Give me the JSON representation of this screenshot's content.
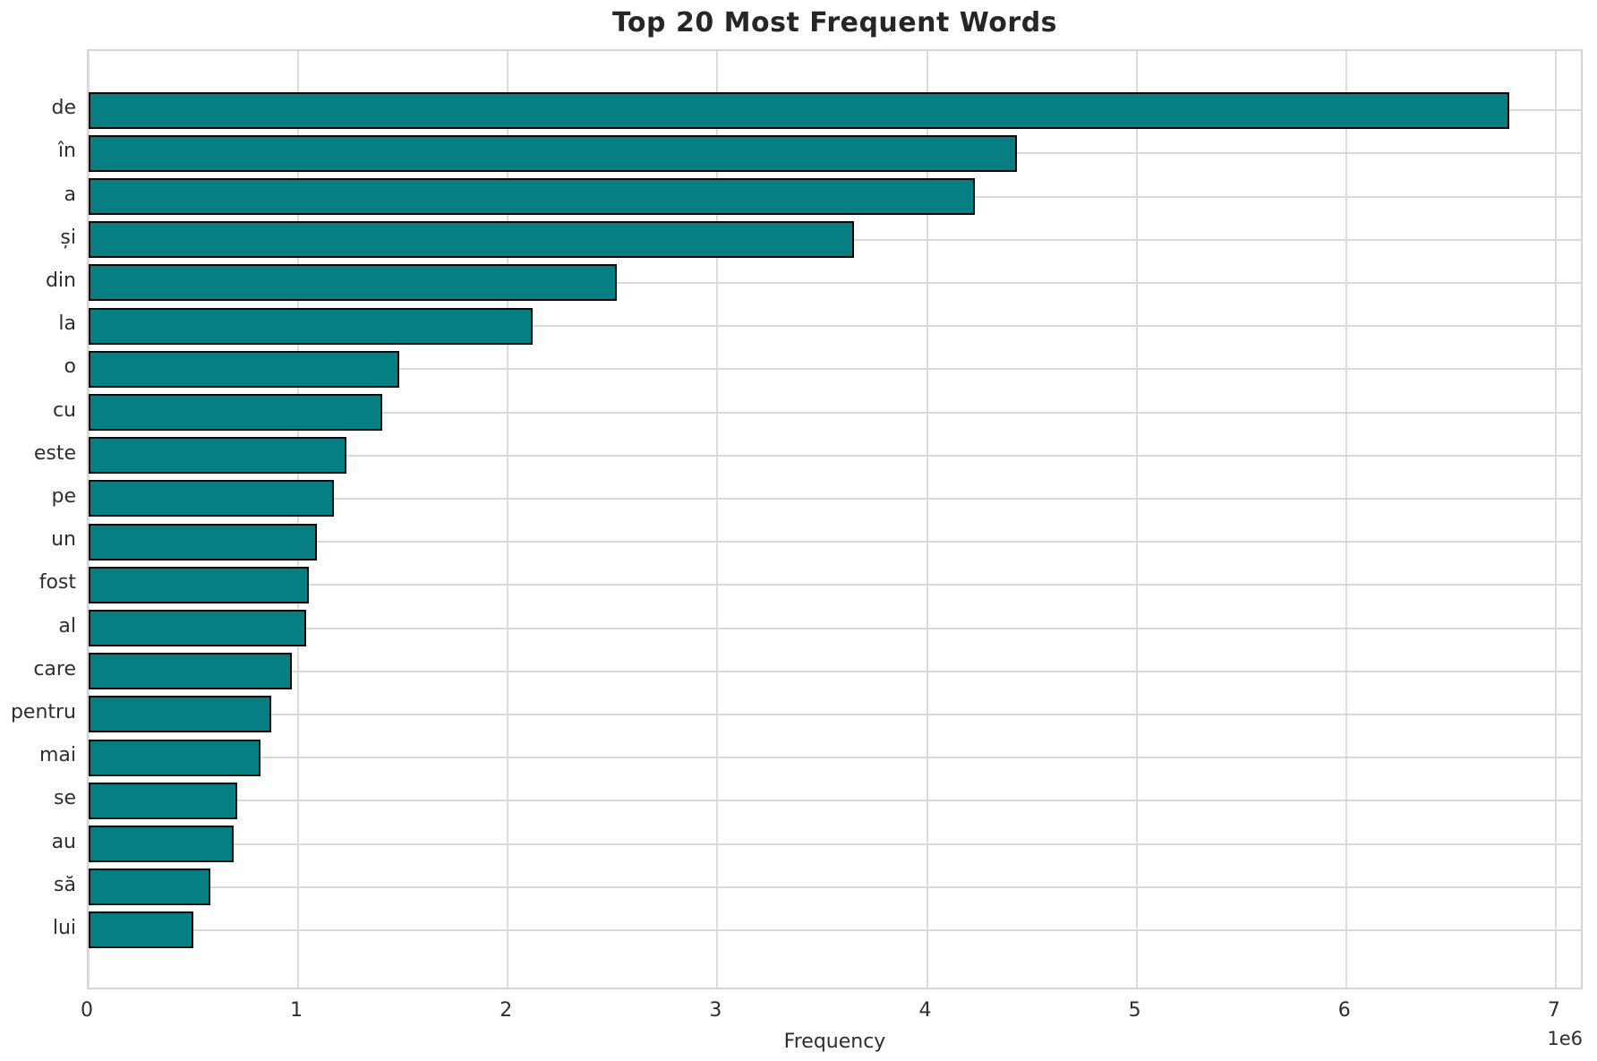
{
  "chart_data": {
    "type": "bar",
    "orientation": "horizontal",
    "title": "Top 20 Most Frequent Words",
    "xlabel": "Frequency",
    "offset_text": "1e6",
    "categories": [
      "de",
      "în",
      "a",
      "și",
      "din",
      "la",
      "o",
      "cu",
      "este",
      "pe",
      "un",
      "fost",
      "al",
      "care",
      "pentru",
      "mai",
      "se",
      "au",
      "să",
      "lui"
    ],
    "values": [
      6780000,
      4430000,
      4230000,
      3650000,
      2520000,
      2120000,
      1480000,
      1400000,
      1230000,
      1170000,
      1090000,
      1050000,
      1040000,
      970000,
      870000,
      820000,
      710000,
      690000,
      580000,
      500000
    ],
    "xlim": [
      0,
      7120000
    ],
    "xticks": [
      0,
      1000000,
      2000000,
      3000000,
      4000000,
      5000000,
      6000000,
      7000000
    ],
    "xtick_labels": [
      "0",
      "1",
      "2",
      "3",
      "4",
      "5",
      "6",
      "7"
    ],
    "grid": true,
    "legend_position": "none",
    "colors": {
      "bar_fill": "#077f82",
      "bar_edge": "#0a0a0a",
      "gridline": "#d9d9d9",
      "spine": "#d4d4d4",
      "text": "#2e2e2e"
    }
  }
}
